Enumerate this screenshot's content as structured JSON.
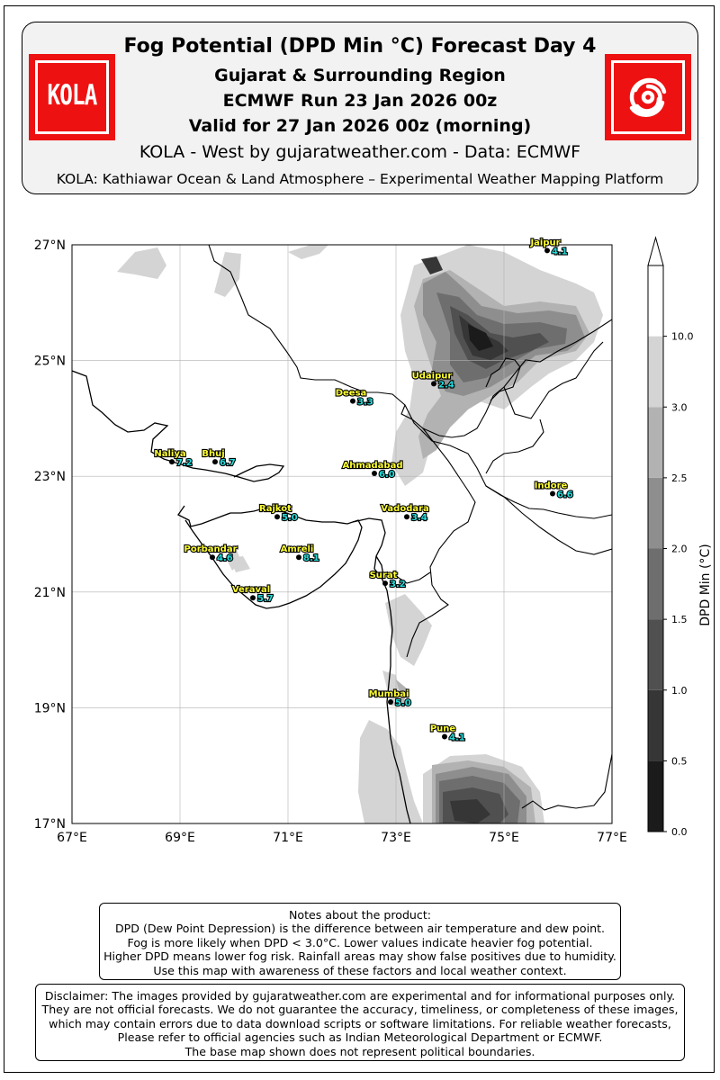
{
  "header": {
    "title": "Fog Potential (DPD Min °C) Forecast Day 4",
    "region": "Gujarat & Surrounding Region",
    "run": "ECMWF Run 23 Jan 2026 00z",
    "valid": "Valid for 27 Jan 2026 00z (morning)",
    "source": "KOLA - West by gujaratweather.com  -  Data: ECMWF",
    "platform": "KOLA: Kathiawar Ocean & Land Atmosphere – Experimental Weather Mapping Platform",
    "logo_left_text": "KOLA"
  },
  "colors": {
    "logo_red": "#ee1111",
    "label_yellow": "#ffff33",
    "value_cyan": "#22dddd"
  },
  "map": {
    "lon_range": [
      67,
      77
    ],
    "lat_range": [
      17,
      27
    ],
    "lon_ticks": [
      "67°E",
      "69°E",
      "71°E",
      "73°E",
      "75°E",
      "77°E"
    ],
    "lat_ticks": [
      "27°N",
      "25°N",
      "23°N",
      "21°N",
      "19°N",
      "17°N"
    ],
    "cities": [
      {
        "name": "Jaipur",
        "value": "4.1",
        "lon": 75.8,
        "lat": 26.9
      },
      {
        "name": "Udaipur",
        "value": "2.4",
        "lon": 73.7,
        "lat": 24.6
      },
      {
        "name": "Deesa",
        "value": "3.3",
        "lon": 72.2,
        "lat": 24.3
      },
      {
        "name": "Naliya",
        "value": "7.2",
        "lon": 68.85,
        "lat": 23.25
      },
      {
        "name": "Bhuj",
        "value": "6.7",
        "lon": 69.65,
        "lat": 23.25
      },
      {
        "name": "Ahmadabad",
        "value": "6.0",
        "lon": 72.6,
        "lat": 23.05
      },
      {
        "name": "Indore",
        "value": "6.6",
        "lon": 75.9,
        "lat": 22.7
      },
      {
        "name": "Rajkot",
        "value": "5.0",
        "lon": 70.8,
        "lat": 22.3
      },
      {
        "name": "Vadodara",
        "value": "3.4",
        "lon": 73.2,
        "lat": 22.3
      },
      {
        "name": "Porbandar",
        "value": "4.6",
        "lon": 69.6,
        "lat": 21.6
      },
      {
        "name": "Amreli",
        "value": "8.1",
        "lon": 71.2,
        "lat": 21.6
      },
      {
        "name": "Surat",
        "value": "3.2",
        "lon": 72.8,
        "lat": 21.15
      },
      {
        "name": "Veraval",
        "value": "5.7",
        "lon": 70.35,
        "lat": 20.9
      },
      {
        "name": "Mumbai",
        "value": "5.0",
        "lon": 72.9,
        "lat": 19.1
      },
      {
        "name": "Pune",
        "value": "4.1",
        "lon": 73.9,
        "lat": 18.5
      }
    ]
  },
  "colorbar": {
    "label": "DPD Min (°C)",
    "ticks": [
      "0.0",
      "0.5",
      "1.0",
      "1.5",
      "2.0",
      "2.5",
      "3.0",
      "10.0"
    ],
    "fill_colors": [
      "#1b1b1b",
      "#363636",
      "#505050",
      "#6e6e6e",
      "#8e8e8e",
      "#b2b2b2",
      "#d4d4d4",
      "#ffffff"
    ]
  },
  "notes": [
    "Notes about the product:",
    "DPD (Dew Point Depression) is the difference between air temperature and dew point.",
    "Fog is more likely when DPD < 3.0°C. Lower values indicate heavier fog potential.",
    "Higher DPD means lower fog risk. Rainfall areas may show false positives due to humidity.",
    "Use this map with awareness of these factors and local weather context."
  ],
  "disclaimer": [
    "Disclaimer: The images provided by gujaratweather.com are experimental and for informational purposes only.",
    "They are not official forecasts. We do not guarantee the accuracy, timeliness, or completeness of these images,",
    "which may contain errors due to data download scripts or software limitations. For reliable weather forecasts,",
    "Please refer to official agencies such as Indian Meteorological Department or ECMWF.",
    "The base map shown does not represent political boundaries."
  ]
}
